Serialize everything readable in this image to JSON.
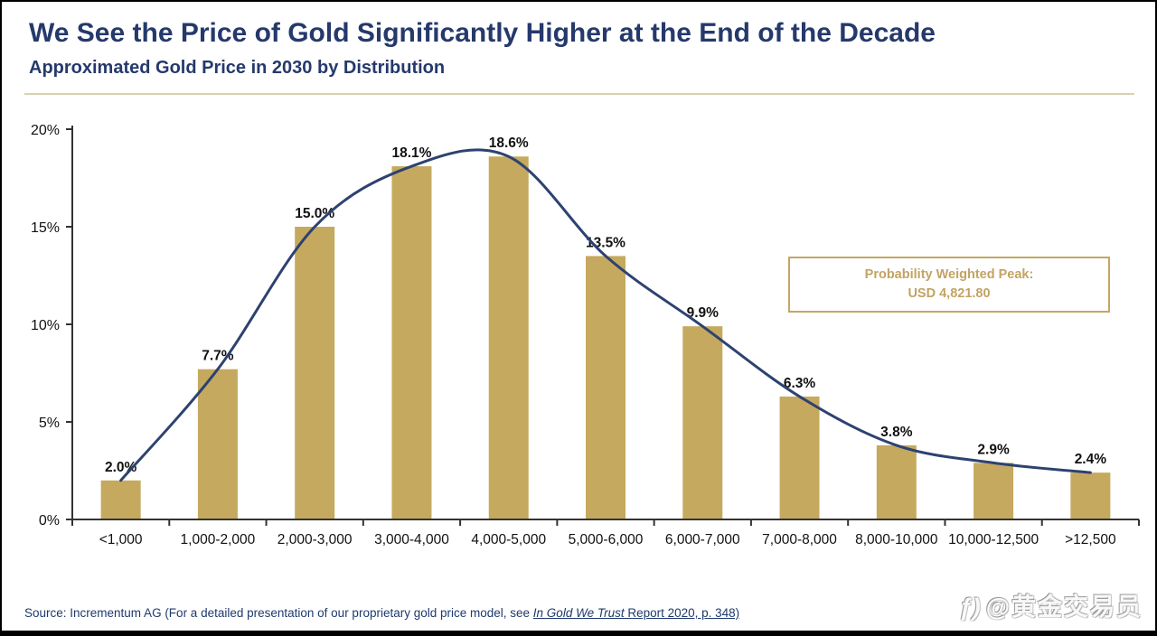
{
  "header": {
    "title": "We See the Price of Gold Significantly Higher at the End of the Decade",
    "subtitle": "Approximated Gold Price in 2030 by Distribution"
  },
  "chart_data": {
    "type": "bar",
    "title": "Approximated Gold Price in 2030 by Distribution",
    "categories": [
      "<1,000",
      "1,000-2,000",
      "2,000-3,000",
      "3,000-4,000",
      "4,000-5,000",
      "5,000-6,000",
      "6,000-7,000",
      "7,000-8,000",
      "8,000-10,000",
      "10,000-12,500",
      ">12,500"
    ],
    "values": [
      2.0,
      7.7,
      15.0,
      18.1,
      18.6,
      13.5,
      9.9,
      6.3,
      3.8,
      2.9,
      2.4
    ],
    "data_labels": [
      "2.0%",
      "7.7%",
      "15.0%",
      "18.1%",
      "18.6%",
      "13.5%",
      "9.9%",
      "6.3%",
      "3.8%",
      "2.9%",
      "2.4%"
    ],
    "overlay": "smoothed distribution curve through bar tops",
    "xlabel": "",
    "ylabel": "",
    "y_ticks": [
      0,
      5,
      10,
      15,
      20
    ],
    "y_tick_labels": [
      "0%",
      "5%",
      "10%",
      "15%",
      "20%"
    ],
    "ylim": [
      0,
      20
    ],
    "grid": false,
    "legend": "none",
    "bar_color": "#C5A95E",
    "line_color": "#2D4270",
    "axis_color": "#333333",
    "label_color": "#111111"
  },
  "annotation": {
    "line1": "Probability Weighted Peak:",
    "line2": "USD 4,821.80",
    "accent_color": "#C3A363"
  },
  "source": {
    "prefix": "Source: Incrementum AG (For a detailed presentation of our proprietary gold price model, see ",
    "link_italic": "In Gold We Trust",
    "link_rest": " Report 2020, p. 348)"
  },
  "watermark": {
    "logo": "ƒ)",
    "text": "@黄金交易员"
  },
  "colors": {
    "title_navy": "#25396B",
    "divider": "#D9D2AB",
    "frame_border": "#000000"
  }
}
